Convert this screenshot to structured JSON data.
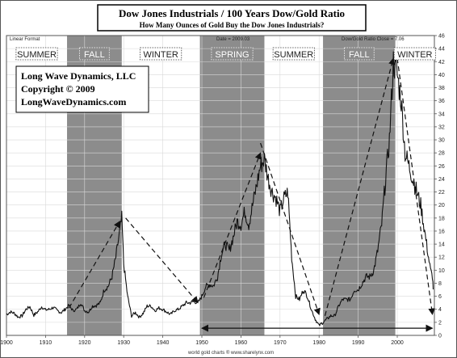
{
  "header": {
    "title": "Dow Jones Industrials / 100 Years Dow/Gold Ratio",
    "subtitle": "How Many Ounces of Gold Buy the Dow Jones Industrials?"
  },
  "corner_labels": {
    "linear_format": "Linear Format",
    "date": "Date = 2009.03",
    "series_close": "Dow/Gold Ratio  Close = 7.06"
  },
  "copyright_box": {
    "line1": "Long Wave Dynamics, LLC",
    "line2": "Copyright © 2009",
    "line3": "LongWaveDynamics.com"
  },
  "footer": {
    "credit": "world gold charts ® www.sharelynx.com"
  },
  "colors": {
    "shade": "#8c8c8c",
    "line": "#111111",
    "grid": "#d9d9d9",
    "border": "#555555"
  },
  "chart_data": {
    "type": "line",
    "title": "Dow Jones Industrials / 100 Years Dow/Gold Ratio",
    "subtitle": "How Many Ounces of Gold Buy the Dow Jones Industrials?",
    "x_ticks": [
      1900,
      1910,
      1920,
      1930,
      1940,
      1950,
      1960,
      1970,
      1980,
      1990,
      2000
    ],
    "y_ticks": [
      0,
      2,
      4,
      6,
      8,
      10,
      12,
      14,
      16,
      18,
      20,
      22,
      24,
      26,
      28,
      30,
      32,
      34,
      36,
      38,
      40,
      42,
      44,
      46
    ],
    "xlim": [
      1900,
      2009.5
    ],
    "ylim": [
      0,
      46
    ],
    "grid": true,
    "y_axis_side": "right",
    "seasons": [
      {
        "label": "SUMMER",
        "start": 1900,
        "end": 1915.5,
        "shaded": false
      },
      {
        "label": "FALL",
        "start": 1915.5,
        "end": 1929.5,
        "shaded": true
      },
      {
        "label": "WINTER",
        "start": 1929.5,
        "end": 1949.5,
        "shaded": false
      },
      {
        "label": "SPRING",
        "start": 1949.5,
        "end": 1966,
        "shaded": true
      },
      {
        "label": "SUMMER",
        "start": 1966,
        "end": 1981,
        "shaded": false
      },
      {
        "label": "FALL",
        "start": 1981,
        "end": 1999.5,
        "shaded": true
      },
      {
        "label": "WINTER",
        "start": 1999.5,
        "end": 2009.5,
        "shaded": false
      }
    ],
    "series": [
      {
        "values": [
          [
            1900,
            3.2
          ],
          [
            1901,
            3.6
          ],
          [
            1902,
            3.4
          ],
          [
            1903,
            2.8
          ],
          [
            1904,
            3.0
          ],
          [
            1905,
            4.0
          ],
          [
            1906,
            4.4
          ],
          [
            1907,
            3.1
          ],
          [
            1908,
            3.6
          ],
          [
            1909,
            4.4
          ],
          [
            1910,
            3.9
          ],
          [
            1911,
            4.0
          ],
          [
            1912,
            4.3
          ],
          [
            1913,
            3.8
          ],
          [
            1914,
            3.5
          ],
          [
            1915,
            4.0
          ],
          [
            1916,
            4.6
          ],
          [
            1917,
            3.8
          ],
          [
            1918,
            4.0
          ],
          [
            1919,
            5.0
          ],
          [
            1920,
            3.8
          ],
          [
            1921,
            3.6
          ],
          [
            1922,
            4.5
          ],
          [
            1923,
            4.6
          ],
          [
            1924,
            5.0
          ],
          [
            1925,
            7.0
          ],
          [
            1926,
            7.5
          ],
          [
            1927,
            9.0
          ],
          [
            1928,
            12.0
          ],
          [
            1929,
            16.0
          ],
          [
            1929.5,
            18.0
          ],
          [
            1930,
            11.0
          ],
          [
            1931,
            6.0
          ],
          [
            1932,
            3.0
          ],
          [
            1933,
            3.5
          ],
          [
            1934,
            2.8
          ],
          [
            1935,
            3.4
          ],
          [
            1936,
            4.5
          ],
          [
            1937,
            4.5
          ],
          [
            1938,
            3.8
          ],
          [
            1939,
            4.2
          ],
          [
            1940,
            4.0
          ],
          [
            1941,
            3.6
          ],
          [
            1942,
            3.2
          ],
          [
            1943,
            3.8
          ],
          [
            1944,
            4.0
          ],
          [
            1945,
            4.5
          ],
          [
            1946,
            5.0
          ],
          [
            1947,
            5.0
          ],
          [
            1948,
            5.2
          ],
          [
            1949,
            5.0
          ],
          [
            1950,
            6.0
          ],
          [
            1951,
            7.5
          ],
          [
            1952,
            7.8
          ],
          [
            1953,
            7.6
          ],
          [
            1954,
            9.0
          ],
          [
            1955,
            12.5
          ],
          [
            1956,
            14.0
          ],
          [
            1957,
            13.0
          ],
          [
            1958,
            15.0
          ],
          [
            1959,
            17.5
          ],
          [
            1960,
            17.0
          ],
          [
            1961,
            19.0
          ],
          [
            1962,
            17.0
          ],
          [
            1963,
            20.0
          ],
          [
            1964,
            23.0
          ],
          [
            1965,
            26.0
          ],
          [
            1966,
            27.0
          ],
          [
            1967,
            24.0
          ],
          [
            1968,
            22.0
          ],
          [
            1969,
            21.0
          ],
          [
            1970,
            19.0
          ],
          [
            1971,
            21.0
          ],
          [
            1972,
            22.0
          ],
          [
            1973,
            12.0
          ],
          [
            1974,
            6.0
          ],
          [
            1975,
            5.5
          ],
          [
            1976,
            7.0
          ],
          [
            1977,
            6.0
          ],
          [
            1978,
            4.0
          ],
          [
            1979,
            2.5
          ],
          [
            1980,
            1.5
          ],
          [
            1981,
            2.0
          ],
          [
            1982,
            2.5
          ],
          [
            1983,
            3.0
          ],
          [
            1984,
            3.0
          ],
          [
            1985,
            4.5
          ],
          [
            1986,
            5.5
          ],
          [
            1987,
            5.5
          ],
          [
            1988,
            5.5
          ],
          [
            1989,
            7.0
          ],
          [
            1990,
            7.0
          ],
          [
            1991,
            8.0
          ],
          [
            1992,
            9.0
          ],
          [
            1993,
            9.0
          ],
          [
            1994,
            10.0
          ],
          [
            1995,
            13.0
          ],
          [
            1996,
            17.0
          ],
          [
            1997,
            24.0
          ],
          [
            1998,
            30.0
          ],
          [
            1999,
            42.0
          ],
          [
            2000,
            40.0
          ],
          [
            2001,
            36.0
          ],
          [
            2002,
            28.0
          ],
          [
            2003,
            26.0
          ],
          [
            2004,
            24.0
          ],
          [
            2005,
            22.0
          ],
          [
            2006,
            20.0
          ],
          [
            2007,
            16.0
          ],
          [
            2008,
            12.0
          ],
          [
            2008.5,
            10.0
          ],
          [
            2009,
            9.0
          ],
          [
            2009.2,
            7.06
          ]
        ]
      }
    ],
    "trend_arrows": [
      {
        "from": [
          1916,
          4.2
        ],
        "to": [
          1929,
          17.5
        ]
      },
      {
        "from": [
          1930.5,
          18.0
        ],
        "to": [
          1949,
          5.0
        ]
      },
      {
        "from": [
          1950.5,
          5.8
        ],
        "to": [
          1965,
          28.0
        ]
      },
      {
        "from": [
          1965,
          29.5
        ],
        "to": [
          1980,
          3.2
        ]
      },
      {
        "from": [
          1981.5,
          3.0
        ],
        "to": [
          1999,
          42.5
        ]
      },
      {
        "from": [
          2000,
          42.5
        ],
        "to": [
          2009,
          3.2
        ]
      }
    ],
    "range_arrow": {
      "from": [
        1950,
        1.1
      ],
      "to": [
        2009,
        1.1
      ]
    }
  }
}
